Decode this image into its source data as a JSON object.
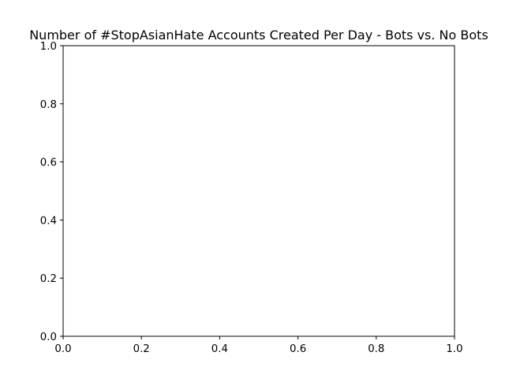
{
  "chart_data": {
    "type": "line",
    "title": "Number of #StopAsianHate Accounts Created Per Day - Bots vs. No Bots",
    "xlabel": "",
    "ylabel": "",
    "xlim": [
      0.0,
      1.0
    ],
    "ylim": [
      0.0,
      1.0
    ],
    "x_ticks": [
      "0.0",
      "0.2",
      "0.4",
      "0.6",
      "0.8",
      "1.0"
    ],
    "y_ticks": [
      "0.0",
      "0.2",
      "0.4",
      "0.6",
      "0.8",
      "1.0"
    ],
    "series": [],
    "grid": false,
    "legend": "none"
  }
}
